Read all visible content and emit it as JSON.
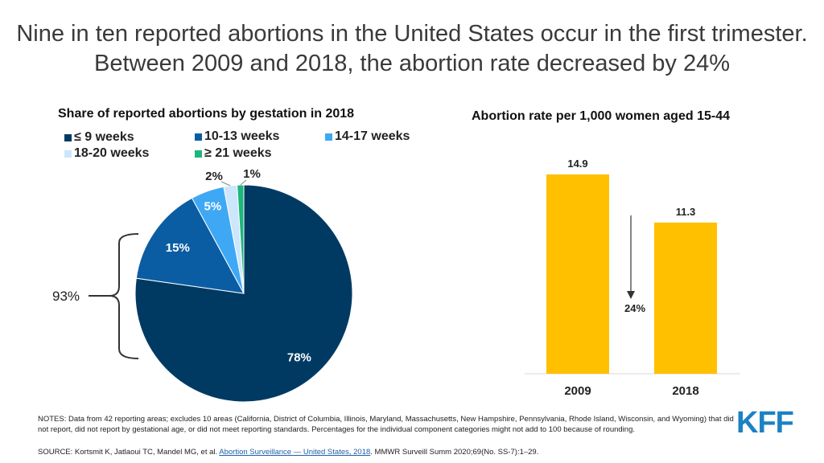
{
  "headline": "Nine in ten reported abortions in the United States occur in the first trimester. Between 2009 and 2018, the abortion rate decreased by 24%",
  "chart_data": [
    {
      "type": "pie",
      "title": "Share of reported abortions by gestation in 2018",
      "categories": [
        "≤ 9 weeks",
        "10-13 weeks",
        "14-17 weeks",
        "18-20 weeks",
        "≥ 21 weeks"
      ],
      "values": [
        78,
        15,
        5,
        2,
        1
      ],
      "labels": [
        "78%",
        "15%",
        "5%",
        "2%",
        "1%"
      ],
      "colors": [
        "#003a63",
        "#0b5da3",
        "#3ea8f5",
        "#cce6fb",
        "#1db67d"
      ],
      "annotation": "93%"
    },
    {
      "type": "bar",
      "title": "Abortion rate per 1,000 women aged 15-44",
      "categories": [
        "2009",
        "2018"
      ],
      "values": [
        14.9,
        11.3
      ],
      "labels": [
        "14.9",
        "11.3"
      ],
      "color": "#ffc000",
      "ylim": [
        0,
        14.9
      ],
      "annotation": "24%"
    }
  ],
  "notes": "NOTES: Data from 42 reporting areas; excludes 10 areas (California, District of Columbia, Illinois, Maryland, Massachusetts, New Hampshire, Pennsylvania, Rhode Island, Wisconsin, and Wyoming) that did not report, did not report by gestational age, or did not meet reporting standards. Percentages for the individual component categories might not add to 100 because of rounding.",
  "source": {
    "prefix": "SOURCE: Kortsmit K, Jatlaoui TC, Mandel MG, et al.",
    "link": "Abortion Surveillance — United States, 2018",
    "suffix": ". MMWR Surveill Summ 2020;69(No. SS-7):1–29."
  },
  "logo": "KFF"
}
